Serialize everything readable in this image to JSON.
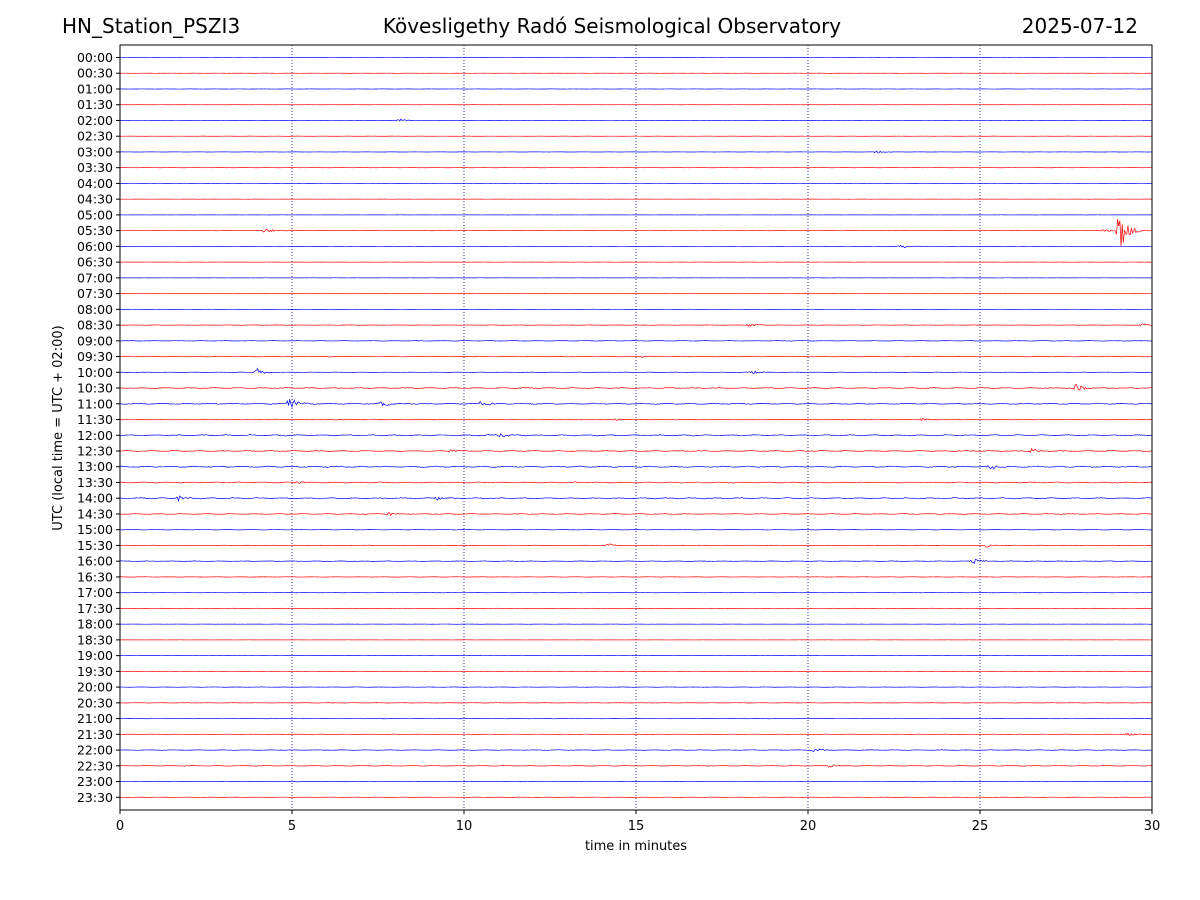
{
  "header": {
    "station": "HN_Station_PSZI3",
    "title": "Kövesligethy Radó Seismological Observatory",
    "date": "2025-07-12"
  },
  "chart_data": {
    "type": "line",
    "title": "Kövesligethy Radó Seismological Observatory",
    "xlabel": "time in minutes",
    "ylabel": "UTC (local time = UTC + 02:00)",
    "xlim": [
      0,
      30
    ],
    "xticks": [
      "0",
      "5",
      "10",
      "15",
      "20",
      "25",
      "30"
    ],
    "xtick_values": [
      0,
      5,
      10,
      15,
      20,
      25,
      30
    ],
    "vertical_gridlines": [
      5,
      10,
      15,
      20,
      25
    ],
    "colors": {
      "even_hour": "#0000ff",
      "half_hour": "#ff0000",
      "grid": "#000080"
    },
    "rows": [
      {
        "label": "00:00",
        "activity": 0.15,
        "events": []
      },
      {
        "label": "00:30",
        "activity": 0.15,
        "events": []
      },
      {
        "label": "01:00",
        "activity": 0.15,
        "events": []
      },
      {
        "label": "01:30",
        "activity": 0.12,
        "events": []
      },
      {
        "label": "02:00",
        "activity": 0.2,
        "events": [
          {
            "t": 8.1,
            "amp": 2
          }
        ]
      },
      {
        "label": "02:30",
        "activity": 0.12,
        "events": []
      },
      {
        "label": "03:00",
        "activity": 0.15,
        "events": [
          {
            "t": 22.0,
            "amp": 2
          }
        ]
      },
      {
        "label": "03:30",
        "activity": 0.12,
        "events": []
      },
      {
        "label": "04:00",
        "activity": 0.1,
        "events": []
      },
      {
        "label": "04:30",
        "activity": 0.1,
        "events": []
      },
      {
        "label": "05:00",
        "activity": 0.12,
        "events": []
      },
      {
        "label": "05:30",
        "activity": 0.15,
        "events": [
          {
            "t": 4.2,
            "amp": 3
          },
          {
            "t": 28.6,
            "amp": 2
          },
          {
            "t": 29.05,
            "amp": 22
          }
        ]
      },
      {
        "label": "06:00",
        "activity": 0.15,
        "events": [
          {
            "t": 22.7,
            "amp": 2
          }
        ]
      },
      {
        "label": "06:30",
        "activity": 0.12,
        "events": []
      },
      {
        "label": "07:00",
        "activity": 0.12,
        "events": []
      },
      {
        "label": "07:30",
        "activity": 0.15,
        "events": []
      },
      {
        "label": "08:00",
        "activity": 0.12,
        "events": []
      },
      {
        "label": "08:30",
        "activity": 0.3,
        "events": [
          {
            "t": 18.3,
            "amp": 2
          },
          {
            "t": 29.7,
            "amp": 2
          }
        ]
      },
      {
        "label": "09:00",
        "activity": 0.4,
        "events": []
      },
      {
        "label": "09:30",
        "activity": 0.45,
        "events": [
          {
            "t": 15.1,
            "amp": 2
          }
        ]
      },
      {
        "label": "10:00",
        "activity": 0.3,
        "events": [
          {
            "t": 4.0,
            "amp": 4
          },
          {
            "t": 18.4,
            "amp": 2
          }
        ]
      },
      {
        "label": "10:30",
        "activity": 0.8,
        "events": [
          {
            "t": 27.8,
            "amp": 4
          }
        ]
      },
      {
        "label": "11:00",
        "activity": 0.8,
        "events": [
          {
            "t": 4.95,
            "amp": 9
          },
          {
            "t": 7.6,
            "amp": 3
          },
          {
            "t": 10.5,
            "amp": 4
          }
        ]
      },
      {
        "label": "11:30",
        "activity": 0.5,
        "events": [
          {
            "t": 14.4,
            "amp": 2
          },
          {
            "t": 23.3,
            "amp": 2
          }
        ]
      },
      {
        "label": "12:00",
        "activity": 0.9,
        "events": [
          {
            "t": 11.0,
            "amp": 3
          }
        ]
      },
      {
        "label": "12:30",
        "activity": 0.8,
        "events": [
          {
            "t": 9.6,
            "amp": 2
          },
          {
            "t": 26.5,
            "amp": 3
          }
        ]
      },
      {
        "label": "13:00",
        "activity": 1.0,
        "events": [
          {
            "t": 25.3,
            "amp": 4
          }
        ]
      },
      {
        "label": "13:30",
        "activity": 0.8,
        "events": [
          {
            "t": 5.2,
            "amp": 2
          }
        ]
      },
      {
        "label": "14:00",
        "activity": 0.9,
        "events": [
          {
            "t": 1.7,
            "amp": 3
          },
          {
            "t": 9.2,
            "amp": 3
          }
        ]
      },
      {
        "label": "14:30",
        "activity": 0.6,
        "events": [
          {
            "t": 7.8,
            "amp": 2
          }
        ]
      },
      {
        "label": "15:00",
        "activity": 0.4,
        "events": []
      },
      {
        "label": "15:30",
        "activity": 0.4,
        "events": [
          {
            "t": 14.2,
            "amp": 2
          },
          {
            "t": 25.2,
            "amp": 2
          }
        ]
      },
      {
        "label": "16:00",
        "activity": 0.5,
        "events": [
          {
            "t": 24.8,
            "amp": 3
          }
        ]
      },
      {
        "label": "16:30",
        "activity": 0.3,
        "events": []
      },
      {
        "label": "17:00",
        "activity": 0.2,
        "events": []
      },
      {
        "label": "17:30",
        "activity": 0.2,
        "events": []
      },
      {
        "label": "18:00",
        "activity": 0.15,
        "events": []
      },
      {
        "label": "18:30",
        "activity": 0.12,
        "events": []
      },
      {
        "label": "19:00",
        "activity": 0.12,
        "events": []
      },
      {
        "label": "19:30",
        "activity": 0.15,
        "events": []
      },
      {
        "label": "20:00",
        "activity": 0.3,
        "events": []
      },
      {
        "label": "20:30",
        "activity": 0.3,
        "events": []
      },
      {
        "label": "21:00",
        "activity": 0.3,
        "events": []
      },
      {
        "label": "21:30",
        "activity": 0.3,
        "events": [
          {
            "t": 29.3,
            "amp": 2
          }
        ]
      },
      {
        "label": "22:00",
        "activity": 0.45,
        "events": [
          {
            "t": 20.2,
            "amp": 2
          }
        ]
      },
      {
        "label": "22:30",
        "activity": 0.5,
        "events": [
          {
            "t": 20.6,
            "amp": 2
          }
        ]
      },
      {
        "label": "23:00",
        "activity": 0.3,
        "events": []
      },
      {
        "label": "23:30",
        "activity": 0.25,
        "events": []
      }
    ]
  }
}
